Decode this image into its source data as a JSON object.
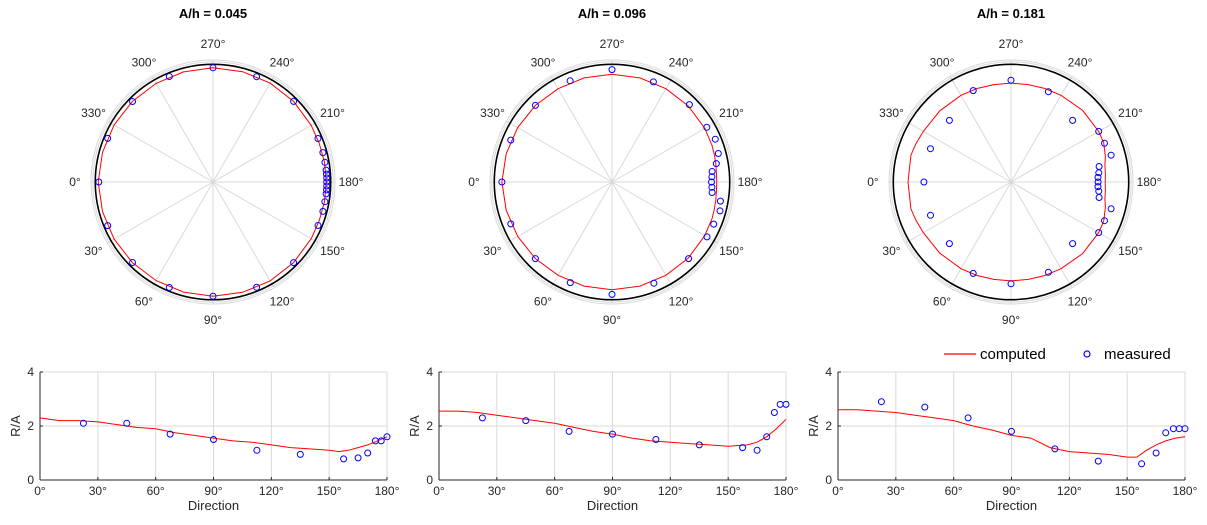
{
  "chart_data": [
    {
      "type": "polar",
      "title": "A/h = 0.045",
      "angle_labels": [
        "0°",
        "30°",
        "60°",
        "90°",
        "120°",
        "150°",
        "180°",
        "210°",
        "240°",
        "270°",
        "300°",
        "330°"
      ],
      "reference_circle_radius": 1.0,
      "computed": [
        [
          0,
          0.975
        ],
        [
          15,
          0.972
        ],
        [
          30,
          0.97
        ],
        [
          45,
          0.968
        ],
        [
          60,
          0.967
        ],
        [
          75,
          0.968
        ],
        [
          90,
          0.97
        ],
        [
          105,
          0.97
        ],
        [
          120,
          0.97
        ],
        [
          135,
          0.968
        ],
        [
          150,
          0.963
        ],
        [
          160,
          0.96
        ],
        [
          170,
          0.962
        ],
        [
          180,
          0.963
        ],
        [
          190,
          0.962
        ],
        [
          200,
          0.96
        ],
        [
          210,
          0.963
        ],
        [
          225,
          0.968
        ],
        [
          240,
          0.97
        ],
        [
          255,
          0.97
        ],
        [
          270,
          0.97
        ],
        [
          285,
          0.968
        ],
        [
          300,
          0.967
        ],
        [
          315,
          0.968
        ],
        [
          330,
          0.97
        ],
        [
          345,
          0.972
        ],
        [
          360,
          0.975
        ]
      ],
      "measured": [
        [
          0,
          0.97
        ],
        [
          22.5,
          0.968
        ],
        [
          45,
          0.967
        ],
        [
          67.5,
          0.97
        ],
        [
          90,
          0.97
        ],
        [
          112.5,
          0.968
        ],
        [
          135,
          0.968
        ],
        [
          157.5,
          0.965
        ],
        [
          165,
          0.966
        ],
        [
          170,
          0.965
        ],
        [
          174,
          0.966
        ],
        [
          176,
          0.966
        ],
        [
          178,
          0.966
        ],
        [
          180,
          0.966
        ],
        [
          182,
          0.966
        ],
        [
          184,
          0.966
        ],
        [
          186,
          0.966
        ],
        [
          190,
          0.965
        ],
        [
          195,
          0.966
        ],
        [
          202.5,
          0.965
        ],
        [
          225,
          0.968
        ],
        [
          247.5,
          0.968
        ],
        [
          270,
          0.97
        ],
        [
          292.5,
          0.97
        ],
        [
          315,
          0.967
        ],
        [
          337.5,
          0.968
        ]
      ]
    },
    {
      "type": "polar",
      "title": "A/h = 0.096",
      "angle_labels": [
        "0°",
        "30°",
        "60°",
        "90°",
        "120°",
        "150°",
        "180°",
        "210°",
        "240°",
        "270°",
        "300°",
        "330°"
      ],
      "reference_circle_radius": 1.0,
      "computed": [
        [
          0,
          0.935
        ],
        [
          15,
          0.93
        ],
        [
          30,
          0.925
        ],
        [
          45,
          0.92
        ],
        [
          60,
          0.915
        ],
        [
          75,
          0.915
        ],
        [
          90,
          0.915
        ],
        [
          105,
          0.915
        ],
        [
          120,
          0.915
        ],
        [
          135,
          0.915
        ],
        [
          150,
          0.91
        ],
        [
          160,
          0.905
        ],
        [
          165,
          0.9
        ],
        [
          170,
          0.895
        ],
        [
          175,
          0.89
        ],
        [
          180,
          0.89
        ],
        [
          185,
          0.89
        ],
        [
          190,
          0.895
        ],
        [
          195,
          0.9
        ],
        [
          200,
          0.905
        ],
        [
          210,
          0.91
        ],
        [
          225,
          0.915
        ],
        [
          240,
          0.915
        ],
        [
          255,
          0.915
        ],
        [
          270,
          0.915
        ],
        [
          285,
          0.915
        ],
        [
          300,
          0.915
        ],
        [
          315,
          0.92
        ],
        [
          330,
          0.925
        ],
        [
          345,
          0.93
        ],
        [
          360,
          0.935
        ]
      ],
      "measured": [
        [
          0,
          0.935
        ],
        [
          22.5,
          0.93
        ],
        [
          45,
          0.92
        ],
        [
          67.5,
          0.925
        ],
        [
          90,
          0.955
        ],
        [
          112.5,
          0.93
        ],
        [
          135,
          0.92
        ],
        [
          150,
          0.932
        ],
        [
          157.5,
          0.935
        ],
        [
          165,
          0.95
        ],
        [
          170,
          0.935
        ],
        [
          174,
          0.855
        ],
        [
          177,
          0.85
        ],
        [
          180,
          0.845
        ],
        [
          183,
          0.85
        ],
        [
          186,
          0.855
        ],
        [
          190,
          0.9
        ],
        [
          195,
          0.935
        ],
        [
          202.5,
          0.95
        ],
        [
          210,
          0.93
        ],
        [
          225,
          0.93
        ],
        [
          247.5,
          0.92
        ],
        [
          270,
          0.955
        ],
        [
          292.5,
          0.93
        ],
        [
          315,
          0.92
        ],
        [
          337.5,
          0.93
        ]
      ]
    },
    {
      "type": "polar",
      "title": "A/h = 0.181",
      "angle_labels": [
        "0°",
        "30°",
        "60°",
        "90°",
        "120°",
        "150°",
        "180°",
        "210°",
        "240°",
        "270°",
        "300°",
        "330°"
      ],
      "reference_circle_radius": 1.0,
      "computed": [
        [
          0,
          0.875
        ],
        [
          15,
          0.88
        ],
        [
          22,
          0.87
        ],
        [
          30,
          0.86
        ],
        [
          45,
          0.855
        ],
        [
          60,
          0.85
        ],
        [
          70,
          0.845
        ],
        [
          80,
          0.84
        ],
        [
          90,
          0.84
        ],
        [
          100,
          0.84
        ],
        [
          110,
          0.845
        ],
        [
          120,
          0.85
        ],
        [
          135,
          0.86
        ],
        [
          150,
          0.86
        ],
        [
          157,
          0.855
        ],
        [
          165,
          0.83
        ],
        [
          170,
          0.81
        ],
        [
          175,
          0.805
        ],
        [
          180,
          0.8
        ],
        [
          185,
          0.805
        ],
        [
          190,
          0.81
        ],
        [
          195,
          0.83
        ],
        [
          203,
          0.855
        ],
        [
          210,
          0.86
        ],
        [
          225,
          0.86
        ],
        [
          240,
          0.85
        ],
        [
          250,
          0.845
        ],
        [
          260,
          0.84
        ],
        [
          270,
          0.84
        ],
        [
          280,
          0.84
        ],
        [
          290,
          0.845
        ],
        [
          300,
          0.85
        ],
        [
          315,
          0.855
        ],
        [
          330,
          0.86
        ],
        [
          338,
          0.87
        ],
        [
          345,
          0.88
        ],
        [
          360,
          0.875
        ]
      ],
      "measured": [
        [
          0,
          0.74
        ],
        [
          22.5,
          0.74
        ],
        [
          45,
          0.74
        ],
        [
          67.5,
          0.84
        ],
        [
          90,
          0.865
        ],
        [
          112.5,
          0.83
        ],
        [
          135,
          0.74
        ],
        [
          150,
          0.86
        ],
        [
          157.5,
          0.86
        ],
        [
          165,
          0.88
        ],
        [
          170,
          0.76
        ],
        [
          174,
          0.75
        ],
        [
          177,
          0.74
        ],
        [
          180,
          0.74
        ],
        [
          183,
          0.74
        ],
        [
          186,
          0.75
        ],
        [
          190,
          0.76
        ],
        [
          195,
          0.88
        ],
        [
          202.5,
          0.86
        ],
        [
          210,
          0.86
        ],
        [
          225,
          0.74
        ],
        [
          247.5,
          0.83
        ],
        [
          270,
          0.865
        ],
        [
          292.5,
          0.84
        ],
        [
          315,
          0.74
        ],
        [
          337.5,
          0.74
        ]
      ]
    },
    {
      "type": "line",
      "xlabel": "Direction",
      "ylabel": "R/A",
      "xlim": [
        0,
        180
      ],
      "ylim": [
        0,
        4
      ],
      "xticks": [
        "0°",
        "30°",
        "60°",
        "90°",
        "120°",
        "150°",
        "180°"
      ],
      "yticks": [
        "0",
        "2",
        "4"
      ],
      "series": [
        {
          "name": "computed",
          "x": [
            0,
            10,
            20,
            30,
            40,
            50,
            60,
            70,
            80,
            90,
            100,
            110,
            120,
            130,
            140,
            150,
            155,
            160,
            165,
            170,
            175,
            180
          ],
          "y": [
            2.3,
            2.2,
            2.2,
            2.15,
            2.05,
            1.95,
            1.9,
            1.75,
            1.65,
            1.55,
            1.45,
            1.4,
            1.3,
            1.2,
            1.15,
            1.1,
            1.05,
            1.1,
            1.2,
            1.3,
            1.45,
            1.6
          ]
        },
        {
          "name": "measured",
          "x": [
            22.5,
            45,
            67.5,
            90,
            112.5,
            135,
            157.5,
            165,
            170,
            174,
            177,
            180
          ],
          "y": [
            2.1,
            2.1,
            1.7,
            1.5,
            1.1,
            0.95,
            0.78,
            0.82,
            1.0,
            1.45,
            1.45,
            1.6
          ]
        }
      ]
    },
    {
      "type": "line",
      "xlabel": "Direction",
      "ylabel": "R/A",
      "xlim": [
        0,
        180
      ],
      "ylim": [
        0,
        4
      ],
      "xticks": [
        "0°",
        "30°",
        "60°",
        "90°",
        "120°",
        "150°",
        "180°"
      ],
      "yticks": [
        "0",
        "2",
        "4"
      ],
      "series": [
        {
          "name": "computed",
          "x": [
            0,
            10,
            20,
            30,
            40,
            50,
            60,
            70,
            80,
            90,
            100,
            110,
            120,
            130,
            140,
            150,
            160,
            165,
            170,
            175,
            180
          ],
          "y": [
            2.55,
            2.55,
            2.5,
            2.4,
            2.3,
            2.2,
            2.1,
            1.95,
            1.8,
            1.7,
            1.55,
            1.45,
            1.4,
            1.35,
            1.3,
            1.25,
            1.3,
            1.4,
            1.6,
            1.9,
            2.25
          ]
        },
        {
          "name": "measured",
          "x": [
            22.5,
            45,
            67.5,
            90,
            112.5,
            135,
            157.5,
            165,
            170,
            174,
            177,
            180
          ],
          "y": [
            2.3,
            2.2,
            1.8,
            1.7,
            1.5,
            1.3,
            1.2,
            1.1,
            1.6,
            2.5,
            2.8,
            2.8
          ]
        }
      ]
    },
    {
      "type": "line",
      "xlabel": "Direction",
      "ylabel": "R/A",
      "xlim": [
        0,
        180
      ],
      "ylim": [
        0,
        4
      ],
      "xticks": [
        "0°",
        "30°",
        "60°",
        "90°",
        "120°",
        "150°",
        "180°"
      ],
      "yticks": [
        "0",
        "2",
        "4"
      ],
      "series": [
        {
          "name": "computed",
          "x": [
            0,
            10,
            20,
            30,
            40,
            50,
            60,
            70,
            80,
            90,
            100,
            110,
            120,
            130,
            140,
            150,
            155,
            160,
            165,
            170,
            175,
            180
          ],
          "y": [
            2.6,
            2.6,
            2.55,
            2.5,
            2.4,
            2.3,
            2.2,
            2.0,
            1.85,
            1.65,
            1.55,
            1.2,
            1.05,
            1.0,
            0.95,
            0.85,
            0.85,
            1.1,
            1.3,
            1.45,
            1.55,
            1.6
          ]
        },
        {
          "name": "measured",
          "x": [
            22.5,
            45,
            67.5,
            90,
            112.5,
            135,
            157.5,
            165,
            170,
            174,
            177,
            180
          ],
          "y": [
            2.9,
            2.7,
            2.3,
            1.8,
            1.15,
            0.7,
            0.6,
            1.0,
            1.75,
            1.9,
            1.9,
            1.9
          ]
        }
      ]
    }
  ],
  "legend": {
    "computed": "computed",
    "measured": "measured",
    "placement": "above-right-bottom-panel"
  },
  "colors": {
    "computed": "#ff0000",
    "measured": "#0000ff",
    "reference": "#000000",
    "grid": "#d9d9d9"
  }
}
